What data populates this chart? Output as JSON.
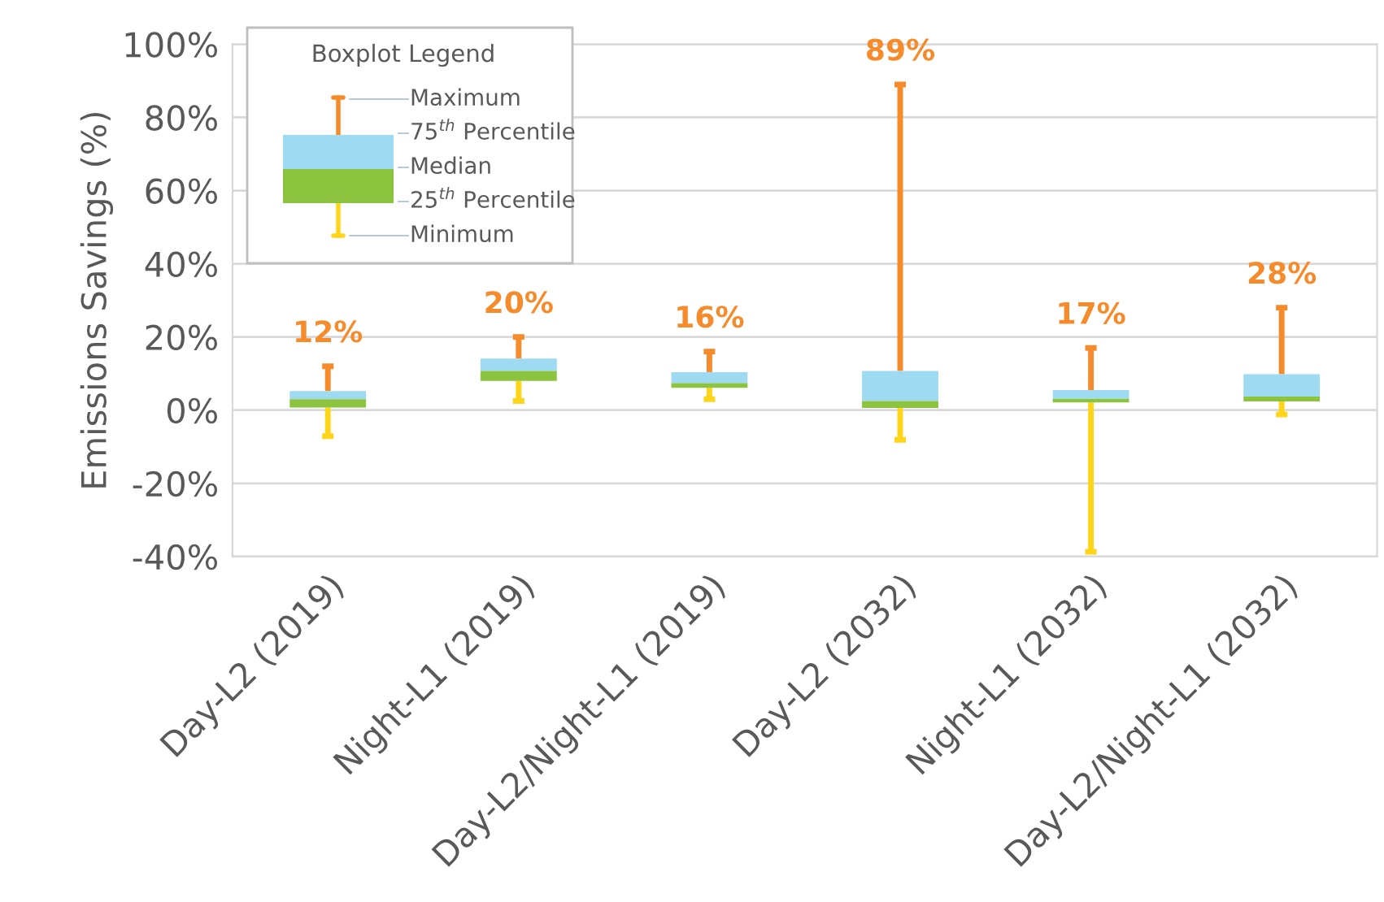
{
  "chart_data": {
    "type": "box",
    "ylabel": "Emissions Savings (%)",
    "legend_title": "Boxplot Legend",
    "grid": "y",
    "categories": [
      "Day-L2 (2019)",
      "Night-L1 (2019)",
      "Day-L2/Night-L1 (2019)",
      "Day-L2 (2032)",
      "Night-L1 (2032)",
      "Day-L2/Night-L1 (2032)"
    ],
    "ylim": [
      -40,
      100
    ],
    "yticks": [
      {
        "value": -40,
        "label": "-40%"
      },
      {
        "value": -20,
        "label": "-20%"
      },
      {
        "value": 0,
        "label": "0%"
      },
      {
        "value": 20,
        "label": "20%"
      },
      {
        "value": 40,
        "label": "40%"
      },
      {
        "value": 60,
        "label": "60%"
      },
      {
        "value": 80,
        "label": "80%"
      },
      {
        "value": 100,
        "label": "100%"
      }
    ],
    "series": [
      {
        "color": "#8cc43f",
        "boxes": [
          {
            "low": -7.1,
            "q1": 0.7,
            "median": 3.0,
            "q3": 5.2,
            "high": 12
          },
          {
            "low": 2.5,
            "q1": 8.0,
            "median": 10.7,
            "q3": 14.1,
            "high": 20
          },
          {
            "low": 3.0,
            "q1": 6.1,
            "median": 7.4,
            "q3": 10.4,
            "high": 16
          },
          {
            "low": -8.1,
            "q1": 0.6,
            "median": 2.5,
            "q3": 10.7,
            "high": 89
          },
          {
            "low": -38.7,
            "q1": 2.1,
            "median": 3.1,
            "q3": 5.5,
            "high": 17
          },
          {
            "low": -1.2,
            "q1": 2.4,
            "median": 3.7,
            "q3": 9.8,
            "high": 28
          }
        ]
      }
    ],
    "annotations": [
      {
        "text": "12%",
        "x": "Day-L2 (2019)",
        "y": 12
      },
      {
        "text": "20%",
        "x": "Night-L1 (2019)",
        "y": 20
      },
      {
        "text": "16%",
        "x": "Day-L2/Night-L1 (2019)",
        "y": 16
      },
      {
        "text": "89%",
        "x": "Day-L2 (2032)",
        "y": 89
      },
      {
        "text": "17%",
        "x": "Night-L1 (2032)",
        "y": 17
      },
      {
        "text": "28%",
        "x": "Day-L2/Night-L1 (2032)",
        "y": 28
      },
      "Maximum",
      "75$^{th}$ Percentile",
      "Median",
      "25$^{th}$ Percentile",
      "Minimum"
    ]
  }
}
